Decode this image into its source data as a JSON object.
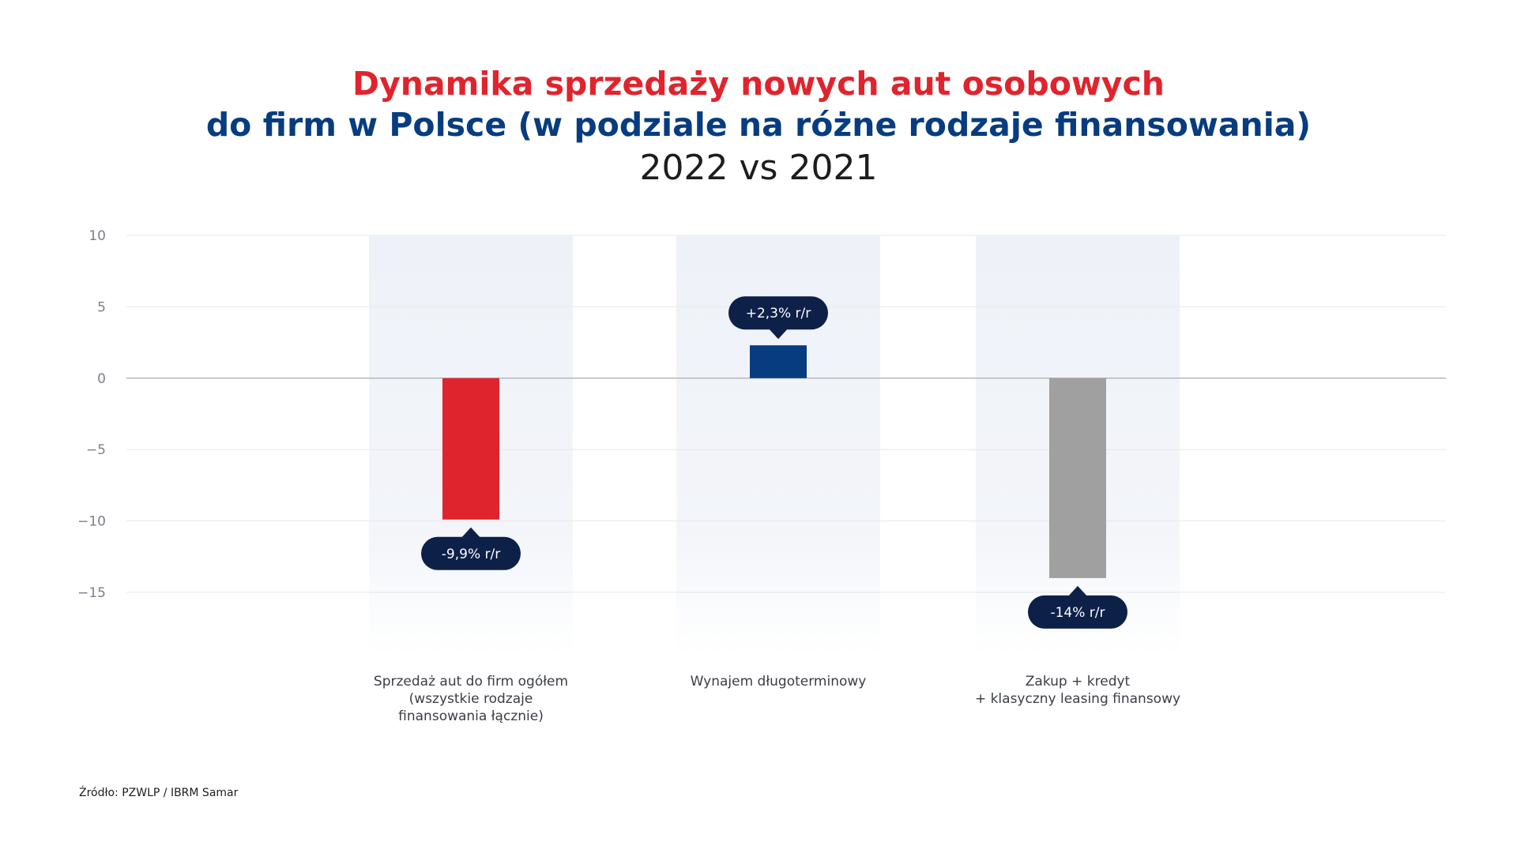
{
  "title": {
    "line1": "Dynamika sprzedaży nowych aut osobowych",
    "line2": "do firm w Polsce (w podziale na różne rodzaje finansowania)",
    "line3": "2022 vs 2021"
  },
  "source": "Źródło:  PZWLP / IBRM Samar",
  "colors": {
    "title_red": "#e0242d",
    "title_blue": "#073c80",
    "callout_bg": "#0d2048",
    "band_bg": "#eef2f8",
    "grid": "#e6e8ec",
    "zero_line": "#b5b8be",
    "tick_text": "#7c8089",
    "category_text": "#3a3d44"
  },
  "chart_data": {
    "type": "bar",
    "title": "Dynamika sprzedaży nowych aut osobowych do firm w Polsce (w podziale na różne rodzaje finansowania)",
    "subtitle": "2022 vs 2021",
    "categories": [
      "Sprzedaż aut do firm ogółem (wszystkie rodzaje finansowania łącznie)",
      "Wynajem długoterminowy",
      "Zakup + kredyt + klasyczny leasing finansowy"
    ],
    "category_label_lines": [
      [
        "Sprzedaż aut do firm ogółem",
        "(wszystkie rodzaje",
        "finansowania łącznie)"
      ],
      [
        "Wynajem długoterminowy"
      ],
      [
        "Zakup + kredyt",
        "+ klasyczny leasing finansowy"
      ]
    ],
    "values": [
      -9.9,
      2.3,
      -14
    ],
    "data_labels": [
      "-9,9% r/r",
      "+2,3% r/r",
      "-14% r/r"
    ],
    "bar_colors": [
      "#e0242d",
      "#073c80",
      "#a0a0a0"
    ],
    "y_ticks": [
      10,
      5,
      0,
      -5,
      -10,
      -15
    ],
    "ylim": [
      -15,
      10
    ],
    "grid": true,
    "legend": "none",
    "xlabel": "",
    "ylabel": ""
  }
}
